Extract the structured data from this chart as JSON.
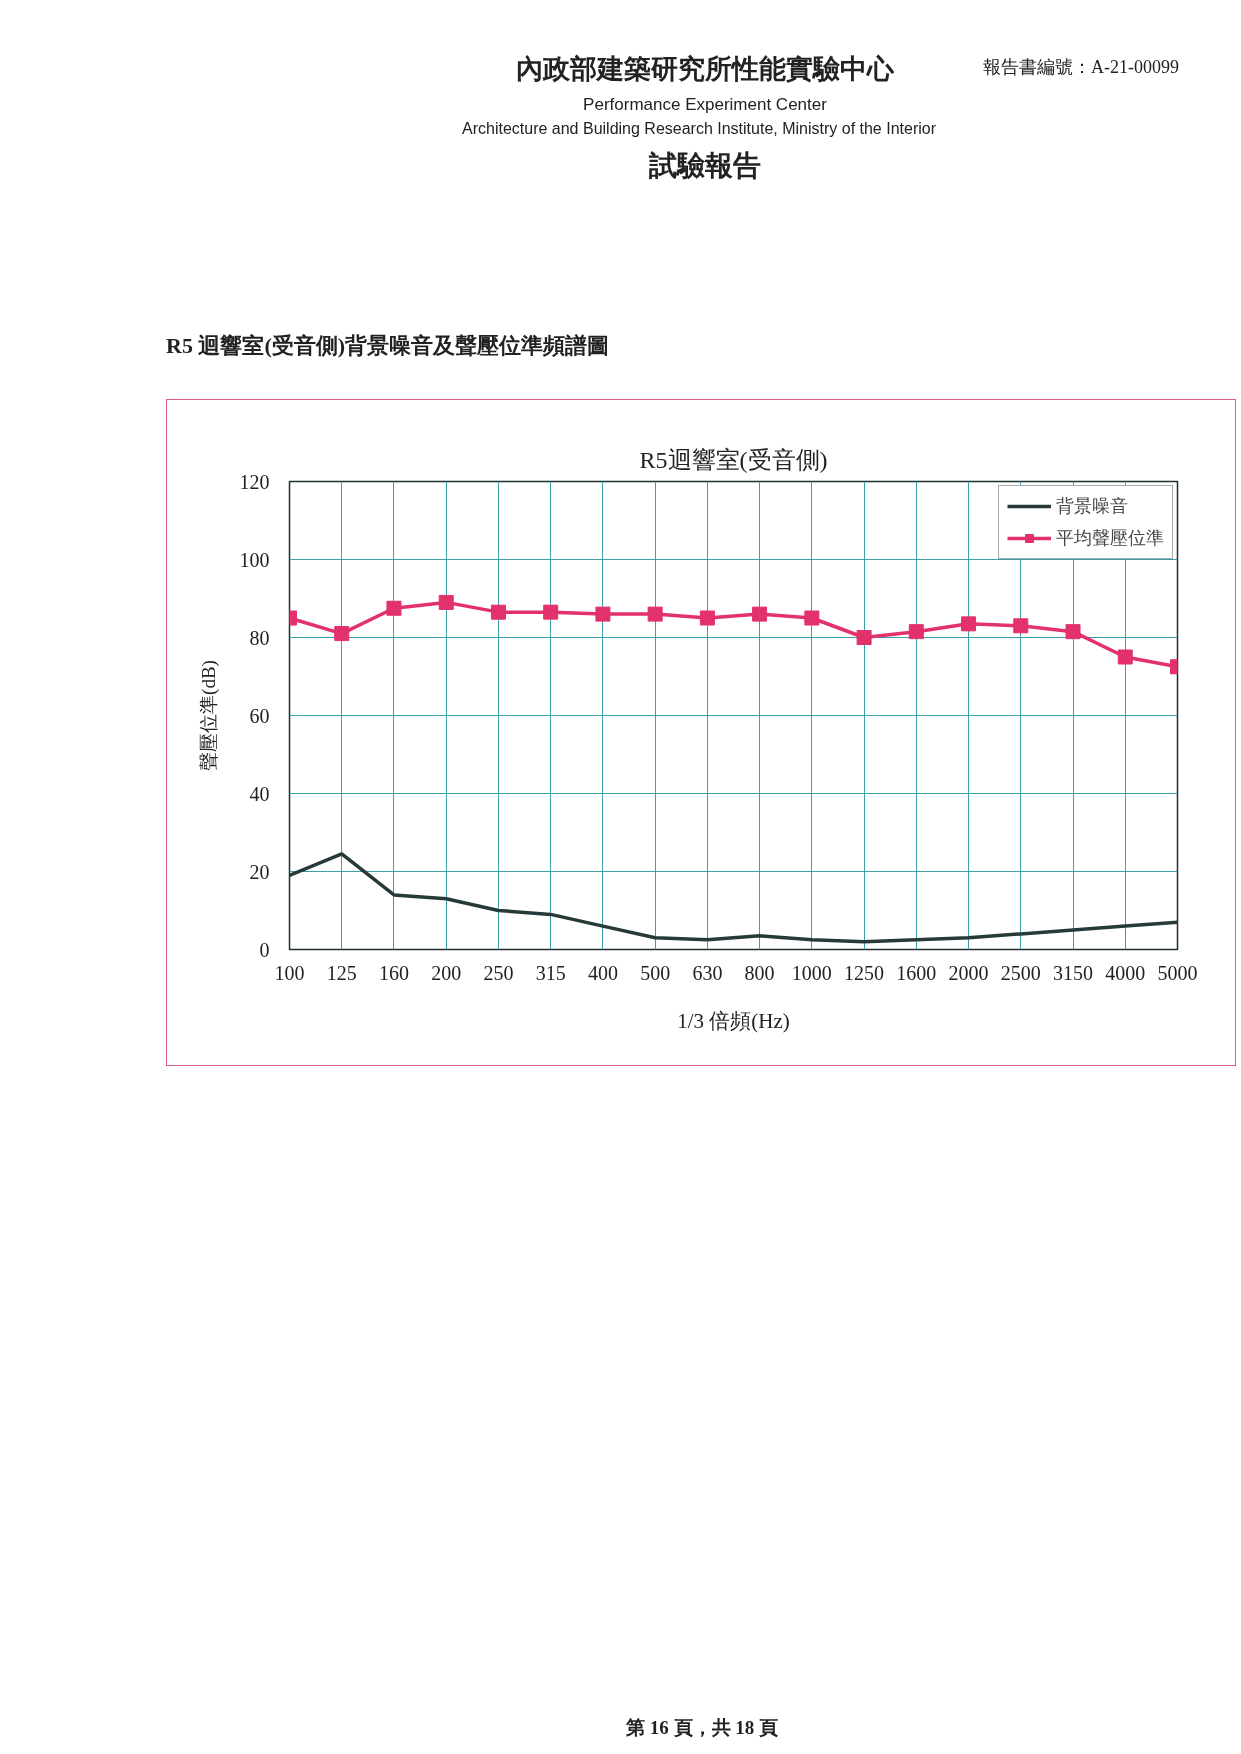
{
  "chart_data": {
    "type": "line",
    "title": "R5迴響室(受音側)",
    "xlabel": "1/3 倍頻(Hz)",
    "ylabel": "聲壓位準(dB)",
    "categories": [
      "100",
      "125",
      "160",
      "200",
      "250",
      "315",
      "400",
      "500",
      "630",
      "800",
      "1000",
      "1250",
      "1600",
      "2000",
      "2500",
      "3150",
      "4000",
      "5000"
    ],
    "series": [
      {
        "name": "背景噪音",
        "color": "#263a3a",
        "marker": "none",
        "values": [
          19,
          24.5,
          14,
          13,
          10,
          9,
          6,
          3,
          2.5,
          3.5,
          2.5,
          2,
          2.5,
          3,
          4,
          5,
          6,
          7
        ]
      },
      {
        "name": "平均聲壓位準",
        "color": "#e3316c",
        "marker": "square",
        "values": [
          85,
          81,
          87.5,
          89,
          86.5,
          86.5,
          86,
          86,
          85,
          86,
          85,
          80,
          81.5,
          83.5,
          83,
          81.5,
          75,
          72.5
        ]
      }
    ],
    "ylim": [
      0,
      120
    ],
    "yticks": [
      0,
      20,
      40,
      60,
      80,
      100,
      120
    ],
    "grid": true,
    "legend": "top right",
    "line_style": "solid",
    "annotations": [
      "內政部建築研究所性能實驗中心",
      "Performance Experiment Center",
      "Architecture and Building Research Institute, Ministry of the Interior",
      "試驗報告",
      "報告書編號：A-21-00099",
      "R5 迴響室(受音側)背景噪音及聲壓位準頻譜圖",
      "第 16 頁，共 18 頁"
    ]
  }
}
